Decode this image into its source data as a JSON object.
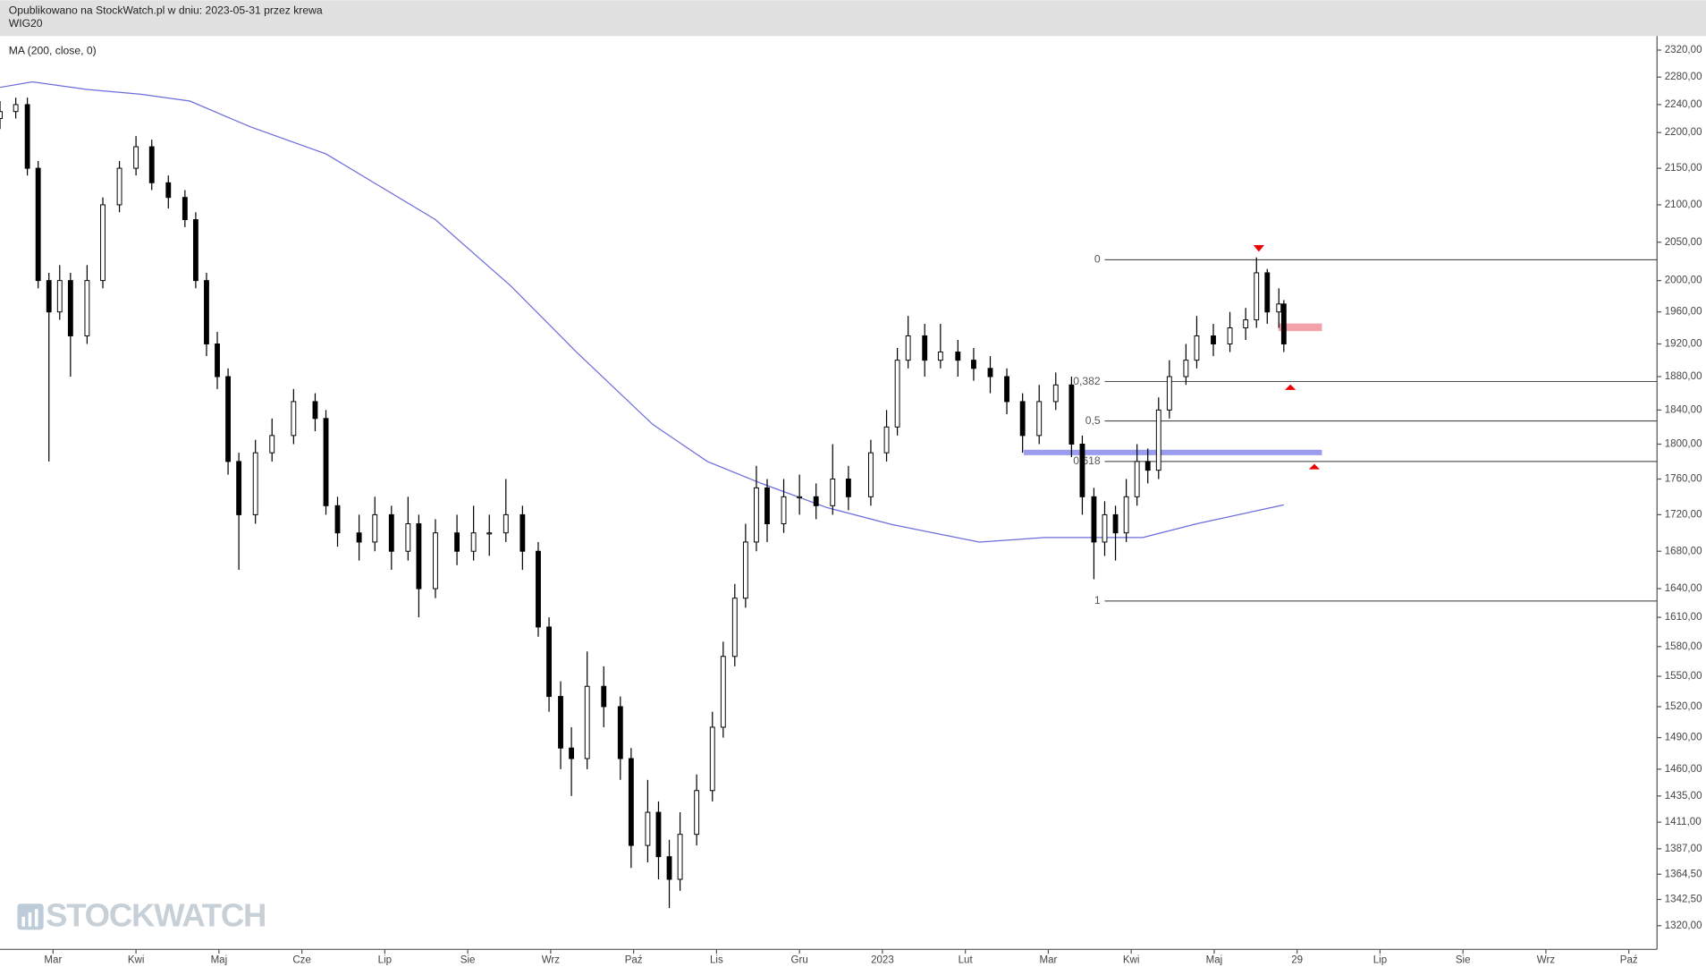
{
  "header": {
    "published": "Opublikowano na StockWatch.pl w dniu: 2023-05-31 przez krewa",
    "symbol": "WIG20"
  },
  "watermark": "STOCKWATCH",
  "chart_data": {
    "type": "candlestick",
    "indicator_label": "MA (200, close, 0)",
    "log_scale": true,
    "xlim": [
      -0.64,
      19.34
    ],
    "xticks": [
      {
        "value": 0,
        "label": "Mar"
      },
      {
        "value": 1,
        "label": "Kwi"
      },
      {
        "value": 2,
        "label": "Maj"
      },
      {
        "value": 3,
        "label": "Cze"
      },
      {
        "value": 4,
        "label": "Lip"
      },
      {
        "value": 5,
        "label": "Sie"
      },
      {
        "value": 6,
        "label": "Wrz"
      },
      {
        "value": 7,
        "label": "Paź"
      },
      {
        "value": 8,
        "label": "Lis"
      },
      {
        "value": 9,
        "label": "Gru"
      },
      {
        "value": 10,
        "label": "2023"
      },
      {
        "value": 11,
        "label": "Lut"
      },
      {
        "value": 12,
        "label": "Mar"
      },
      {
        "value": 13,
        "label": "Kwi"
      },
      {
        "value": 14,
        "label": "Maj"
      },
      {
        "value": 15,
        "label": "29"
      },
      {
        "value": 16,
        "label": "Lip"
      },
      {
        "value": 17,
        "label": "Sie"
      },
      {
        "value": 18,
        "label": "Wrz"
      },
      {
        "value": 19,
        "label": "Paź"
      }
    ],
    "ylim": [
      1300,
      2341
    ],
    "yticks": [
      {
        "value": 2320,
        "label": "2320,00"
      },
      {
        "value": 2280,
        "label": "2280,00"
      },
      {
        "value": 2240,
        "label": "2240,00"
      },
      {
        "value": 2200,
        "label": "2200,00"
      },
      {
        "value": 2150,
        "label": "2150,00"
      },
      {
        "value": 2100,
        "label": "2100,00"
      },
      {
        "value": 2050,
        "label": "2050,00"
      },
      {
        "value": 2000,
        "label": "2000,00"
      },
      {
        "value": 1960,
        "label": "1960,00"
      },
      {
        "value": 1920,
        "label": "1920,00"
      },
      {
        "value": 1880,
        "label": "1880,00"
      },
      {
        "value": 1840,
        "label": "1840,00"
      },
      {
        "value": 1800,
        "label": "1800,00"
      },
      {
        "value": 1760,
        "label": "1760,00"
      },
      {
        "value": 1720,
        "label": "1720,00"
      },
      {
        "value": 1680,
        "label": "1680,00"
      },
      {
        "value": 1640,
        "label": "1640,00"
      },
      {
        "value": 1610,
        "label": "1610,00"
      },
      {
        "value": 1580,
        "label": "1580,00"
      },
      {
        "value": 1550,
        "label": "1550,00"
      },
      {
        "value": 1520,
        "label": "1520,00"
      },
      {
        "value": 1490,
        "label": "1490,00"
      },
      {
        "value": 1460,
        "label": "1460,00"
      },
      {
        "value": 1435,
        "label": "1435,00"
      },
      {
        "value": 1411,
        "label": "1411,00"
      },
      {
        "value": 1387,
        "label": "1387,00"
      },
      {
        "value": 1364.5,
        "label": "1364,50"
      },
      {
        "value": 1342.5,
        "label": "1342,50"
      },
      {
        "value": 1320,
        "label": "1320,00"
      }
    ],
    "x": [
      -0.64,
      -0.45,
      -0.31,
      -0.18,
      -0.05,
      0.08,
      0.21,
      0.41,
      0.6,
      0.8,
      1.0,
      1.19,
      1.39,
      1.59,
      1.72,
      1.85,
      1.98,
      2.11,
      2.24,
      2.44,
      2.64,
      2.9,
      3.16,
      3.29,
      3.43,
      3.69,
      3.88,
      4.08,
      4.28,
      4.41,
      4.61,
      4.87,
      5.07,
      5.26,
      5.46,
      5.66,
      5.85,
      5.98,
      6.12,
      6.25,
      6.44,
      6.64,
      6.84,
      6.97,
      7.17,
      7.3,
      7.43,
      7.56,
      7.76,
      7.95,
      8.08,
      8.22,
      8.35,
      8.48,
      8.61,
      8.81,
      9.0,
      9.2,
      9.4,
      9.59,
      9.86,
      10.05,
      10.18,
      10.31,
      10.51,
      10.7,
      10.91,
      11.1,
      11.3,
      11.5,
      11.69,
      11.89,
      12.09,
      12.28,
      12.41,
      12.55,
      12.68,
      12.81,
      12.94,
      13.07,
      13.2,
      13.33,
      13.46,
      13.66,
      13.79,
      13.99,
      14.19,
      14.38,
      14.51,
      14.64,
      14.78,
      14.84
    ],
    "open": [
      2220,
      2230,
      2240,
      2150,
      2000,
      1960,
      2000,
      1930,
      2000,
      2100,
      2150,
      2180,
      2130,
      2110,
      2080,
      2000,
      1920,
      1880,
      1780,
      1720,
      1790,
      1810,
      1850,
      1830,
      1730,
      1700,
      1690,
      1720,
      1680,
      1710,
      1640,
      1700,
      1680,
      1700,
      1700,
      1720,
      1680,
      1600,
      1530,
      1480,
      1470,
      1540,
      1520,
      1470,
      1390,
      1420,
      1380,
      1360,
      1400,
      1440,
      1500,
      1570,
      1630,
      1690,
      1750,
      1710,
      1740,
      1740,
      1730,
      1760,
      1740,
      1790,
      1820,
      1900,
      1930,
      1900,
      1910,
      1900,
      1890,
      1880,
      1850,
      1810,
      1850,
      1870,
      1800,
      1740,
      1690,
      1720,
      1700,
      1740,
      1780,
      1770,
      1840,
      1880,
      1900,
      1930,
      1920,
      1940,
      1950,
      2010,
      1960,
      1970
    ],
    "high": [
      2245,
      2250,
      2250,
      2160,
      2010,
      2020,
      2010,
      2020,
      2110,
      2160,
      2195,
      2190,
      2140,
      2120,
      2090,
      2010,
      1935,
      1890,
      1790,
      1805,
      1830,
      1865,
      1860,
      1840,
      1740,
      1720,
      1740,
      1730,
      1740,
      1720,
      1715,
      1720,
      1730,
      1720,
      1760,
      1730,
      1690,
      1610,
      1545,
      1500,
      1575,
      1560,
      1530,
      1480,
      1450,
      1430,
      1395,
      1420,
      1455,
      1515,
      1585,
      1645,
      1710,
      1775,
      1760,
      1760,
      1765,
      1755,
      1800,
      1775,
      1805,
      1840,
      1915,
      1955,
      1945,
      1945,
      1925,
      1915,
      1905,
      1890,
      1860,
      1870,
      1885,
      1880,
      1810,
      1750,
      1735,
      1730,
      1760,
      1800,
      1795,
      1855,
      1900,
      1920,
      1955,
      1945,
      1960,
      1965,
      2030,
      2015,
      1990,
      1975
    ],
    "low": [
      2205,
      2220,
      2140,
      1990,
      1780,
      1950,
      1880,
      1920,
      1990,
      2090,
      2140,
      2120,
      2095,
      2070,
      1990,
      1905,
      1865,
      1765,
      1660,
      1710,
      1780,
      1800,
      1815,
      1720,
      1685,
      1670,
      1680,
      1660,
      1670,
      1610,
      1630,
      1665,
      1670,
      1675,
      1690,
      1660,
      1590,
      1515,
      1460,
      1435,
      1460,
      1500,
      1450,
      1370,
      1375,
      1360,
      1335,
      1350,
      1390,
      1430,
      1490,
      1560,
      1620,
      1680,
      1690,
      1700,
      1720,
      1715,
      1720,
      1725,
      1730,
      1780,
      1810,
      1890,
      1880,
      1890,
      1880,
      1875,
      1860,
      1835,
      1790,
      1800,
      1840,
      1785,
      1720,
      1650,
      1675,
      1670,
      1690,
      1730,
      1755,
      1760,
      1830,
      1870,
      1890,
      1905,
      1910,
      1925,
      1940,
      1945,
      1940,
      1910
    ],
    "close": [
      2230,
      2240,
      2150,
      2000,
      1960,
      2000,
      1930,
      2000,
      2100,
      2150,
      2180,
      2130,
      2110,
      2080,
      2000,
      1920,
      1880,
      1780,
      1720,
      1790,
      1810,
      1850,
      1830,
      1730,
      1700,
      1690,
      1720,
      1680,
      1710,
      1640,
      1700,
      1680,
      1700,
      1700,
      1720,
      1680,
      1600,
      1530,
      1480,
      1470,
      1540,
      1520,
      1470,
      1390,
      1420,
      1380,
      1360,
      1400,
      1440,
      1500,
      1570,
      1630,
      1690,
      1750,
      1710,
      1740,
      1740,
      1730,
      1760,
      1740,
      1790,
      1820,
      1900,
      1930,
      1900,
      1910,
      1900,
      1890,
      1880,
      1850,
      1810,
      1850,
      1870,
      1800,
      1740,
      1690,
      1720,
      1700,
      1740,
      1780,
      1770,
      1840,
      1880,
      1900,
      1930,
      1920,
      1940,
      1950,
      2010,
      1960,
      1970,
      1920
    ],
    "ma": {
      "color": "#6b6bdc",
      "x": [
        -0.64,
        -0.25,
        0.41,
        1.06,
        1.65,
        2.38,
        3.29,
        4.61,
        5.52,
        6.31,
        7.23,
        7.89,
        8.54,
        9.33,
        10.12,
        11.17,
        11.96,
        12.48,
        13.14,
        13.79,
        14.84
      ],
      "values": [
        2265,
        2273,
        2262,
        2255,
        2245,
        2208,
        2170,
        2080,
        1993,
        1910,
        1823,
        1780,
        1755,
        1728,
        1709,
        1690,
        1695,
        1695,
        1695,
        1710,
        1731
      ]
    },
    "fib_levels": [
      {
        "label": "0",
        "value": 2027
      },
      {
        "label": "0,382",
        "value": 1874
      },
      {
        "label": "0,5",
        "value": 1827
      },
      {
        "label": "0,618",
        "value": 1780
      },
      {
        "label": "1",
        "value": 1627
      }
    ]
  }
}
